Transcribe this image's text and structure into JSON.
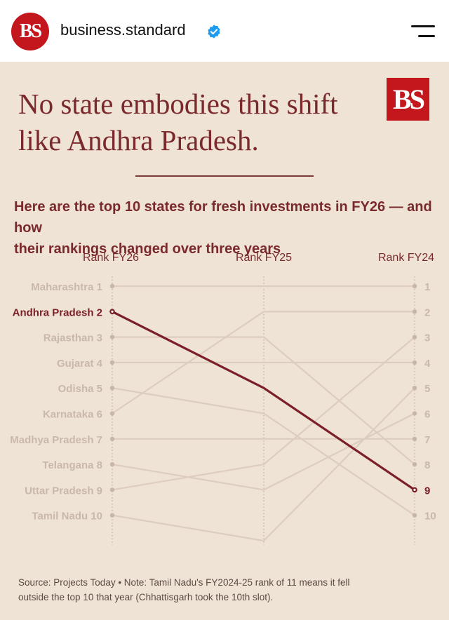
{
  "header": {
    "account_name": "business.standard",
    "avatar_text": "BS",
    "verified_icon": "verified-badge-icon",
    "menu_icon": "hamburger-menu-icon"
  },
  "poster": {
    "headline_line1": "No state embodies this shift",
    "headline_line2": "like Andhra Pradesh.",
    "logo_text": "BS",
    "subtitle_line1": "Here are the top 10 states for fresh investments in FY26 — and how",
    "subtitle_line2": "their rankings changed over three years",
    "source_line1": "Source: Projects Today • Note: Tamil Nadu's FY2024-25 rank of 11 means it fell",
    "source_line2": "outside the top 10 that year (Chhattisgarh took the 10th slot)."
  },
  "colors": {
    "background": "#efe3d6",
    "highlight": "#7b1f28",
    "muted_line": "#ddcdbf",
    "muted_text": "#c9b8ab",
    "accent_red": "#c4171d"
  },
  "chart_data": {
    "type": "slope",
    "columns": [
      "Rank FY26",
      "Rank FY25",
      "Rank FY24"
    ],
    "highlight": "Andhra Pradesh",
    "rank_range": [
      1,
      11
    ],
    "right_labels": [
      1,
      2,
      3,
      4,
      5,
      6,
      7,
      8,
      9,
      10
    ],
    "series": [
      {
        "name": "Maharashtra",
        "label": "Maharashtra 1",
        "ranks": [
          1,
          1,
          1
        ]
      },
      {
        "name": "Andhra Pradesh",
        "label": "Andhra Pradesh 2",
        "ranks": [
          2,
          5,
          9
        ]
      },
      {
        "name": "Rajasthan",
        "label": "Rajasthan 3",
        "ranks": [
          3,
          3,
          8
        ]
      },
      {
        "name": "Gujarat",
        "label": "Gujarat 4",
        "ranks": [
          4,
          4,
          4
        ]
      },
      {
        "name": "Odisha",
        "label": "Odisha 5",
        "ranks": [
          5,
          6,
          10
        ]
      },
      {
        "name": "Karnataka",
        "label": "Karnataka 6",
        "ranks": [
          6,
          2,
          2
        ]
      },
      {
        "name": "Madhya Pradesh",
        "label": "Madhya Pradesh 7",
        "ranks": [
          7,
          7,
          7
        ]
      },
      {
        "name": "Telangana",
        "label": "Telangana 8",
        "ranks": [
          8,
          9,
          6
        ]
      },
      {
        "name": "Uttar Pradesh",
        "label": "Uttar Pradesh 9",
        "ranks": [
          9,
          8,
          3
        ]
      },
      {
        "name": "Tamil Nadu",
        "label": "Tamil Nadu 10",
        "ranks": [
          10,
          11,
          5
        ]
      }
    ]
  }
}
